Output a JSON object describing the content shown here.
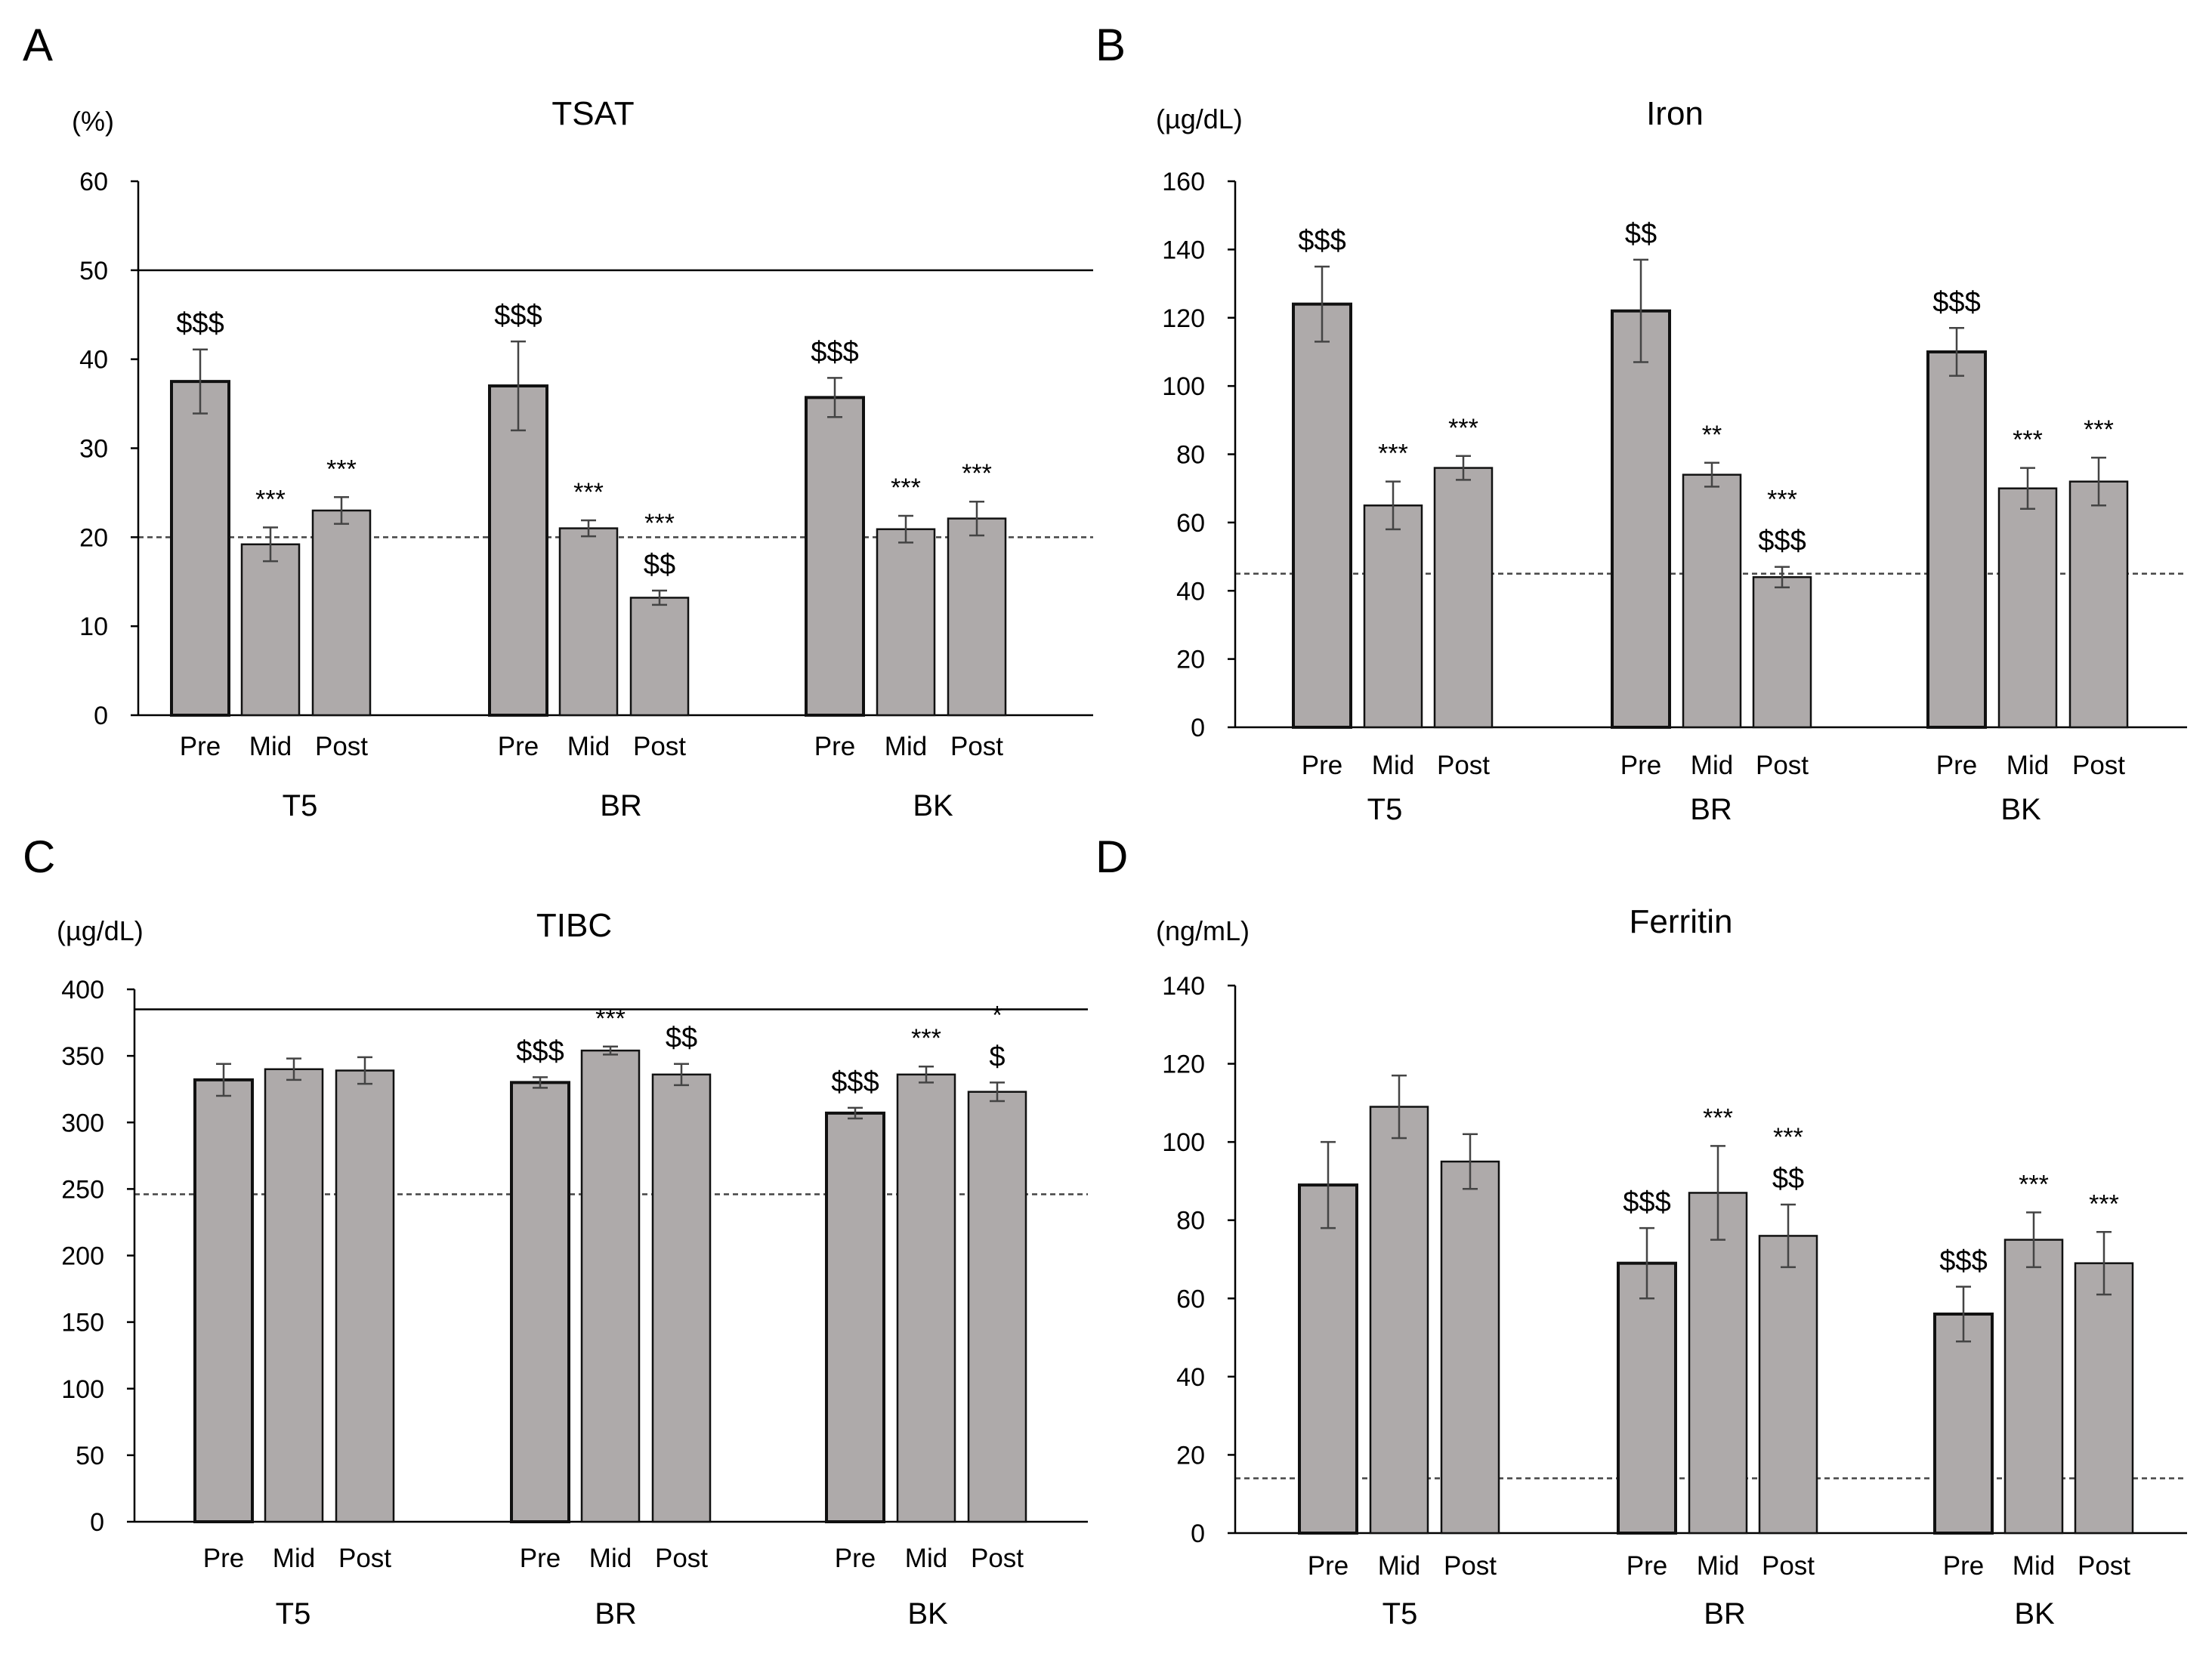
{
  "chart_data": [
    {
      "panel": "A",
      "type": "bar",
      "title": "TSAT",
      "unit": "(%)",
      "ylim": [
        0,
        60
      ],
      "yticks": [
        "0",
        "10",
        "20",
        "30",
        "40",
        "50",
        "60"
      ],
      "groups": [
        "T5",
        "BR",
        "BK"
      ],
      "categories": [
        "Pre",
        "Mid",
        "Post"
      ],
      "values": [
        [
          37.5,
          19.2,
          23.0
        ],
        [
          37.0,
          21.0,
          13.2
        ],
        [
          35.7,
          20.9,
          22.1
        ]
      ],
      "errors": [
        [
          3.6,
          1.9,
          1.5
        ],
        [
          5.0,
          0.9,
          0.8
        ],
        [
          2.2,
          1.5,
          1.9
        ]
      ],
      "annotations": [
        [
          "$$$",
          "***",
          "***"
        ],
        [
          "$$$",
          "***",
          "***\n$$"
        ],
        [
          "$$$",
          "***",
          "***"
        ]
      ],
      "reference_lines": {
        "solid": 50,
        "dashed": 20
      }
    },
    {
      "panel": "B",
      "type": "bar",
      "title": "Iron",
      "unit": "(µg/dL)",
      "ylim": [
        0,
        160
      ],
      "yticks": [
        "0",
        "20",
        "40",
        "60",
        "80",
        "100",
        "120",
        "140",
        "160"
      ],
      "groups": [
        "T5",
        "BR",
        "BK"
      ],
      "categories": [
        "Pre",
        "Mid",
        "Post"
      ],
      "values": [
        [
          124,
          65,
          76
        ],
        [
          122,
          74,
          44
        ],
        [
          110,
          70,
          72
        ]
      ],
      "errors": [
        [
          11,
          7,
          3.5
        ],
        [
          15,
          3.5,
          3
        ],
        [
          7,
          6,
          7
        ]
      ],
      "annotations": [
        [
          "$$$",
          "***",
          "***"
        ],
        [
          "$$",
          "**",
          "***\n$$$"
        ],
        [
          "$$$",
          "***",
          "***"
        ]
      ],
      "reference_lines": {
        "dashed": 45
      }
    },
    {
      "panel": "C",
      "type": "bar",
      "title": "TIBC",
      "unit": "(µg/dL)",
      "ylim": [
        0,
        400
      ],
      "yticks": [
        "0",
        "50",
        "100",
        "150",
        "200",
        "250",
        "300",
        "350",
        "400"
      ],
      "groups": [
        "T5",
        "BR",
        "BK"
      ],
      "categories": [
        "Pre",
        "Mid",
        "Post"
      ],
      "values": [
        [
          332,
          340,
          339
        ],
        [
          330,
          354,
          336
        ],
        [
          307,
          336,
          323
        ]
      ],
      "errors": [
        [
          12,
          8,
          10
        ],
        [
          4,
          3,
          8
        ],
        [
          4,
          6,
          7
        ]
      ],
      "annotations": [
        [
          "",
          "",
          ""
        ],
        [
          "$$$",
          "***",
          "$$"
        ],
        [
          "$$$",
          "***",
          "*\n$"
        ]
      ],
      "reference_lines": {
        "solid": 385,
        "dashed": 246
      }
    },
    {
      "panel": "D",
      "type": "bar",
      "title": "Ferritin",
      "unit": "(ng/mL)",
      "ylim": [
        0,
        140
      ],
      "yticks": [
        "0",
        "20",
        "40",
        "60",
        "80",
        "100",
        "120",
        "140"
      ],
      "groups": [
        "T5",
        "BR",
        "BK"
      ],
      "categories": [
        "Pre",
        "Mid",
        "Post"
      ],
      "values": [
        [
          89,
          109,
          95
        ],
        [
          69,
          87,
          76
        ],
        [
          56,
          75,
          69
        ]
      ],
      "errors": [
        [
          11,
          8,
          7
        ],
        [
          9,
          12,
          8
        ],
        [
          7,
          7,
          8
        ]
      ],
      "annotations": [
        [
          "",
          "",
          ""
        ],
        [
          "$$$",
          "***",
          "***\n$$"
        ],
        [
          "$$$",
          "***",
          "***"
        ]
      ],
      "reference_lines": {
        "dashed": 14
      }
    }
  ]
}
